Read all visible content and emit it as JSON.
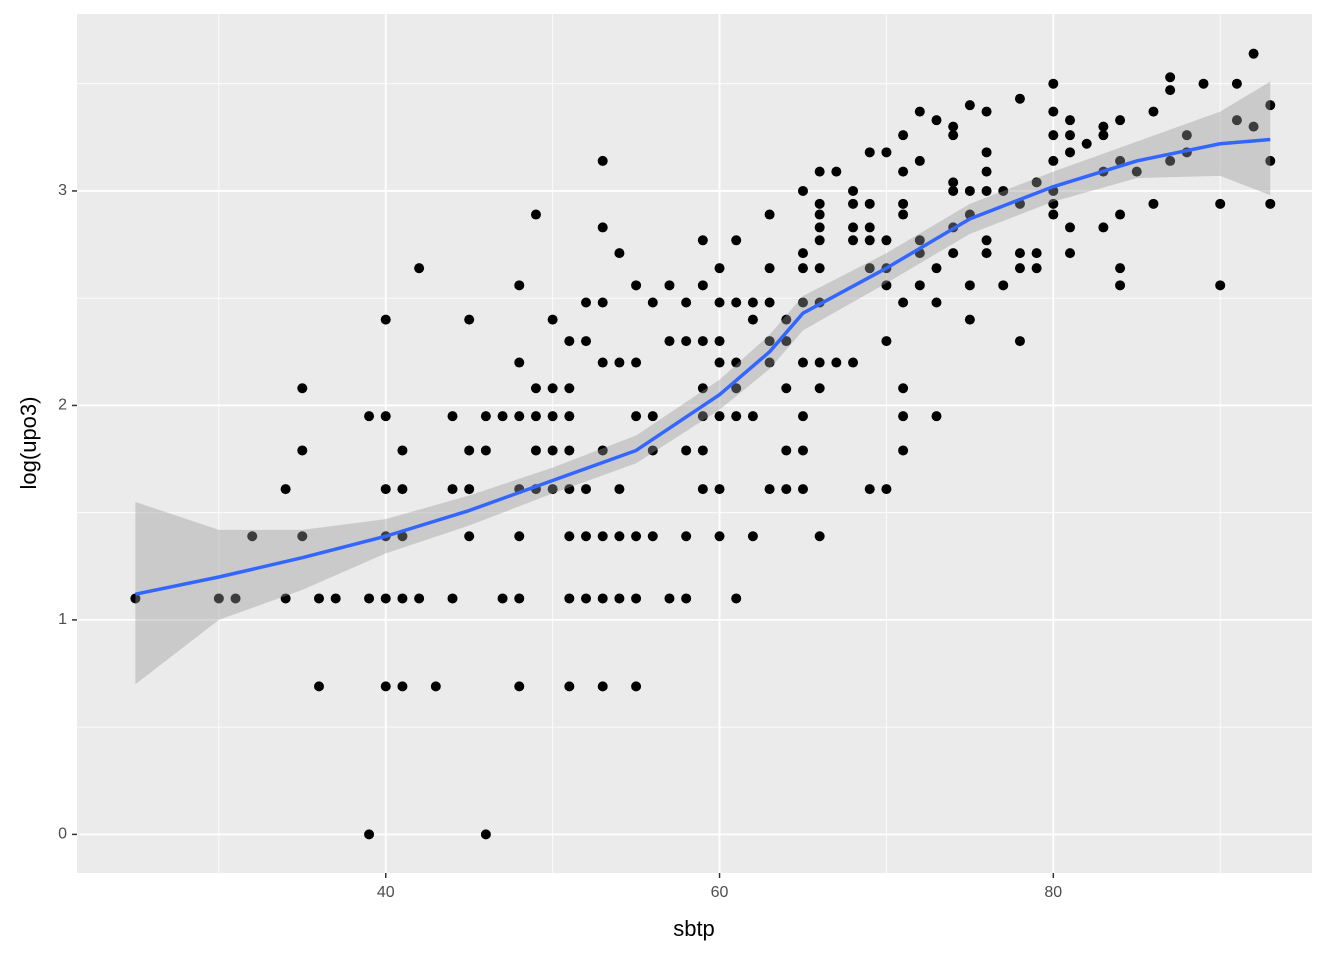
{
  "chart_data": {
    "type": "scatter",
    "x_label": "sbtp",
    "y_label": "log(upo3)",
    "xlim": [
      21.5,
      95.5
    ],
    "ylim": [
      -0.18,
      3.825
    ],
    "xticks": [
      40,
      60,
      80
    ],
    "yticks": [
      0,
      1,
      2,
      3
    ],
    "x_minor_grid": [
      30,
      50,
      70,
      90
    ],
    "y_minor_grid": [
      0.5,
      1.5,
      2.5,
      3.5
    ],
    "grid": true,
    "points": {
      "color": "#000000",
      "x": [
        25,
        30,
        31,
        32,
        34,
        34,
        35,
        35,
        35,
        36,
        36,
        37,
        39,
        39,
        39,
        40,
        40,
        40,
        40,
        40,
        40,
        41,
        41,
        41,
        41,
        41,
        42,
        42,
        43,
        44,
        44,
        44,
        45,
        45,
        45,
        45,
        46,
        46,
        46,
        47,
        47,
        48,
        48,
        48,
        48,
        48,
        48,
        48,
        49,
        49,
        49,
        49,
        49,
        50,
        50,
        50,
        50,
        50,
        51,
        51,
        51,
        51,
        51,
        51,
        51,
        51,
        52,
        52,
        52,
        52,
        52,
        53,
        53,
        53,
        53,
        53,
        53,
        53,
        53,
        54,
        54,
        54,
        54,
        54,
        55,
        55,
        55,
        55,
        55,
        55,
        56,
        56,
        56,
        56,
        57,
        57,
        57,
        58,
        58,
        58,
        58,
        58,
        59,
        59,
        59,
        59,
        59,
        59,
        59,
        60,
        60,
        60,
        60,
        60,
        60,
        60,
        61,
        61,
        61,
        61,
        61,
        61,
        62,
        62,
        62,
        62,
        63,
        63,
        63,
        63,
        63,
        63,
        64,
        64,
        64,
        64,
        64,
        65,
        65,
        65,
        65,
        65,
        65,
        65,
        65,
        66,
        66,
        66,
        66,
        66,
        66,
        66,
        66,
        66,
        66,
        67,
        67,
        68,
        68,
        68,
        68,
        68,
        69,
        69,
        69,
        69,
        69,
        69,
        70,
        70,
        70,
        70,
        70,
        70,
        71,
        71,
        71,
        71,
        71,
        71,
        71,
        71,
        72,
        72,
        72,
        72,
        72,
        73,
        73,
        73,
        73,
        74,
        74,
        74,
        74,
        74,
        74,
        75,
        75,
        75,
        75,
        75,
        76,
        76,
        76,
        76,
        76,
        76,
        77,
        77,
        78,
        78,
        78,
        78,
        78,
        79,
        79,
        79,
        80,
        80,
        80,
        80,
        80,
        80,
        80,
        81,
        81,
        81,
        81,
        81,
        82,
        83,
        83,
        83,
        83,
        84,
        84,
        84,
        84,
        84,
        85,
        86,
        86,
        87,
        87,
        87,
        88,
        88,
        89,
        90,
        90,
        91,
        91,
        92,
        92,
        93,
        93,
        93
      ],
      "values": [
        1.1,
        1.1,
        1.1,
        1.39,
        1.61,
        1.1,
        2.08,
        1.79,
        1.39,
        1.1,
        0.69,
        1.1,
        1.95,
        1.1,
        0,
        2.4,
        1.95,
        1.61,
        1.39,
        1.1,
        0.69,
        1.79,
        1.61,
        1.39,
        1.1,
        0.69,
        2.64,
        1.1,
        0.69,
        1.95,
        1.61,
        1.1,
        2.4,
        1.79,
        1.61,
        1.39,
        1.95,
        1.79,
        0,
        1.95,
        1.1,
        2.56,
        2.2,
        1.95,
        1.61,
        1.39,
        1.1,
        0.69,
        2.89,
        2.08,
        1.95,
        1.79,
        1.61,
        2.4,
        2.08,
        1.95,
        1.79,
        1.61,
        2.3,
        2.08,
        1.95,
        1.79,
        1.61,
        1.39,
        1.1,
        0.69,
        2.48,
        2.3,
        1.61,
        1.39,
        1.1,
        3.14,
        2.83,
        2.48,
        2.2,
        1.79,
        1.39,
        1.1,
        0.69,
        2.71,
        2.2,
        1.61,
        1.39,
        1.1,
        2.56,
        2.2,
        1.95,
        1.39,
        1.1,
        0.69,
        2.48,
        1.95,
        1.79,
        1.39,
        2.56,
        2.3,
        1.1,
        2.48,
        2.3,
        1.79,
        1.39,
        1.1,
        2.77,
        2.56,
        2.3,
        2.08,
        1.95,
        1.79,
        1.61,
        2.64,
        2.48,
        2.3,
        2.2,
        1.95,
        1.61,
        1.39,
        2.77,
        2.48,
        2.2,
        2.08,
        1.95,
        1.1,
        2.48,
        2.4,
        1.95,
        1.39,
        2.89,
        2.64,
        2.48,
        2.3,
        2.2,
        1.61,
        2.4,
        2.3,
        2.08,
        1.79,
        1.61,
        3.0,
        2.71,
        2.64,
        2.48,
        2.2,
        1.95,
        1.79,
        1.61,
        3.09,
        2.94,
        2.89,
        2.83,
        2.77,
        2.64,
        2.48,
        2.2,
        2.08,
        1.39,
        3.09,
        2.2,
        3.0,
        2.94,
        2.83,
        2.77,
        2.2,
        3.18,
        2.94,
        2.83,
        2.77,
        2.64,
        1.61,
        3.18,
        2.77,
        2.64,
        2.56,
        2.3,
        1.61,
        3.26,
        3.09,
        2.94,
        2.89,
        2.48,
        2.08,
        1.95,
        1.79,
        3.37,
        3.14,
        2.77,
        2.71,
        2.56,
        3.33,
        2.64,
        2.48,
        1.95,
        3.3,
        3.26,
        3.04,
        3.0,
        2.83,
        2.71,
        3.4,
        3.0,
        2.89,
        2.56,
        2.4,
        3.37,
        3.18,
        3.09,
        3.0,
        2.77,
        2.71,
        3.0,
        2.56,
        3.43,
        2.94,
        2.71,
        2.64,
        2.3,
        3.04,
        2.71,
        2.64,
        3.5,
        3.37,
        3.26,
        3.14,
        3.0,
        2.94,
        2.89,
        3.33,
        3.26,
        3.18,
        2.83,
        2.71,
        3.22,
        3.3,
        3.26,
        3.09,
        2.83,
        3.33,
        3.14,
        2.89,
        2.64,
        2.56,
        3.09,
        3.37,
        2.94,
        3.53,
        3.47,
        3.14,
        3.26,
        3.18,
        3.5,
        2.94,
        2.56,
        3.5,
        3.33,
        3.64,
        3.3,
        3.4,
        3.14,
        2.94
      ]
    },
    "smooth": {
      "color": "#3366FF",
      "band_color": "#999999",
      "x": [
        25,
        30,
        35,
        40,
        45,
        50,
        55,
        60,
        63,
        65,
        70,
        75,
        80,
        85,
        90,
        93
      ],
      "values": [
        1.12,
        1.2,
        1.29,
        1.39,
        1.51,
        1.65,
        1.79,
        2.05,
        2.25,
        2.43,
        2.64,
        2.87,
        3.02,
        3.14,
        3.22,
        3.24
      ],
      "lower": [
        0.7,
        1.0,
        1.14,
        1.31,
        1.44,
        1.59,
        1.73,
        1.98,
        2.17,
        2.35,
        2.57,
        2.8,
        2.95,
        3.06,
        3.07,
        2.98
      ],
      "upper": [
        1.55,
        1.42,
        1.42,
        1.47,
        1.58,
        1.71,
        1.86,
        2.12,
        2.33,
        2.51,
        2.71,
        2.94,
        3.09,
        3.23,
        3.37,
        3.51
      ]
    }
  }
}
